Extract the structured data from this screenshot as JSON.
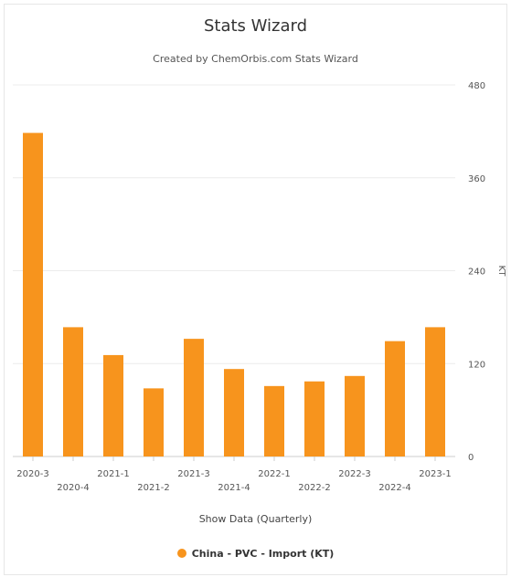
{
  "chart_data": {
    "type": "bar",
    "title": "Stats Wizard",
    "subtitle": "Created by ChemOrbis.com Stats Wizard",
    "xlabel": "Show Data (Quarterly)",
    "ylabel": "KT",
    "categories": [
      "2020-3",
      "2020-4",
      "2021-1",
      "2021-2",
      "2021-3",
      "2021-4",
      "2022-1",
      "2022-2",
      "2022-3",
      "2022-4",
      "2023-1"
    ],
    "series": [
      {
        "name": "China - PVC - Import (KT)",
        "color": "#f7941d",
        "values": [
          418,
          167,
          131,
          88,
          152,
          113,
          91,
          97,
          104,
          149,
          167
        ]
      }
    ],
    "ylim": [
      0,
      480
    ],
    "yticks": [
      0,
      120,
      240,
      360,
      480
    ],
    "y_axis_position": "right",
    "grid": true,
    "legend_position": "bottom"
  }
}
